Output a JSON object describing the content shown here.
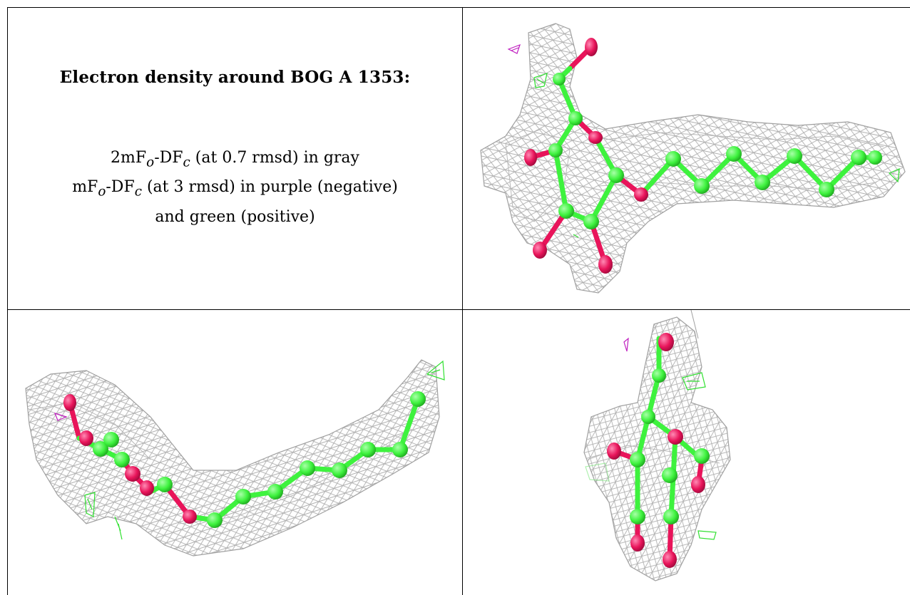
{
  "legend": {
    "title": "Electron density around BOG A 1353:",
    "line1": {
      "pre": "2mF",
      "sub1": "o",
      "mid": "-DF",
      "sub2": "c",
      "post": " (at 0.7 rmsd) in gray"
    },
    "line2": {
      "pre": "mF",
      "sub1": "o",
      "mid": "-DF",
      "sub2": "c",
      "post": " (at 3 rmsd) in purple (negative)"
    },
    "line3": "and green (positive)"
  },
  "colors": {
    "carbon": "#3ef23e",
    "oxygen": "#e8145a",
    "mesh": "#a9a9a9",
    "negative_density": "#c020c0",
    "positive_density": "#30e030",
    "border": "#000000"
  },
  "views": [
    {
      "id": "top-right",
      "description_name": "view-1"
    },
    {
      "id": "bottom-left",
      "description_name": "view-2"
    },
    {
      "id": "bottom-right",
      "description_name": "view-3"
    }
  ]
}
